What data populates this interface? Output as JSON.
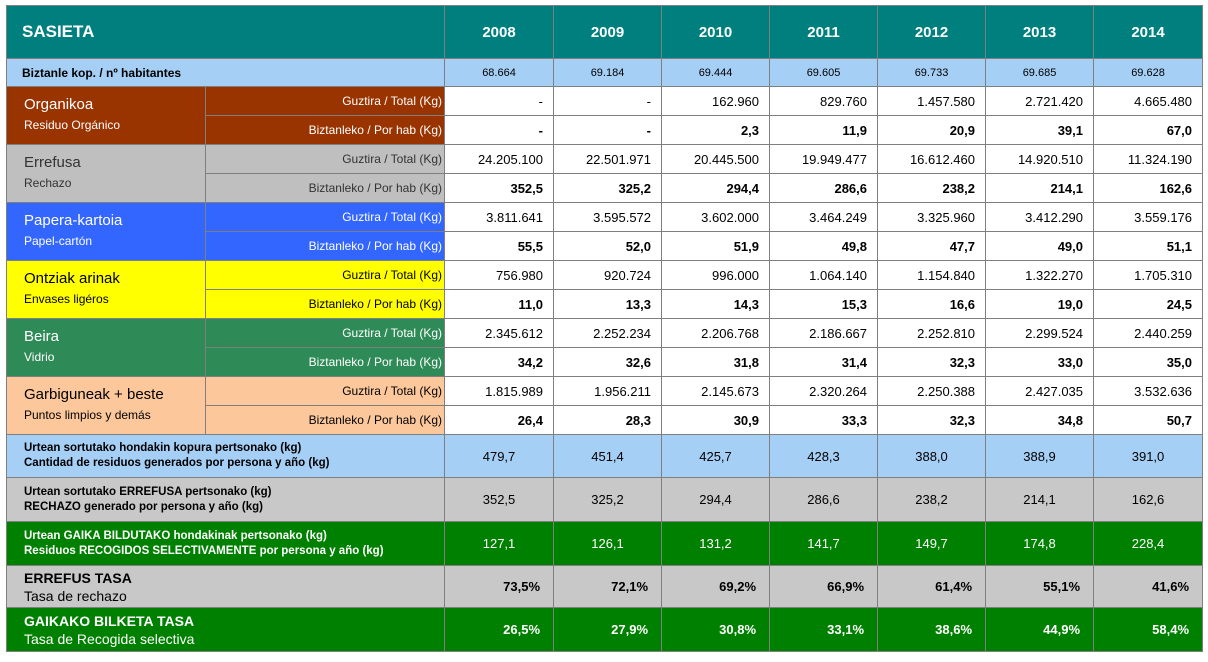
{
  "header": {
    "title": "SASIETA",
    "years": [
      "2008",
      "2009",
      "2010",
      "2011",
      "2012",
      "2013",
      "2014"
    ]
  },
  "population": {
    "label": "Biztanle kop. / nº habitantes",
    "values": [
      "68.664",
      "69.184",
      "69.444",
      "69.605",
      "69.733",
      "69.685",
      "69.628"
    ]
  },
  "labels": {
    "total": "Guztira / Total (Kg)",
    "per_hab": "Biztanleko / Por hab (Kg)"
  },
  "categories": [
    {
      "name_eu": "Organikoa",
      "name_es": "Residuo Orgánico",
      "color": "#993300",
      "total": [
        "-",
        "-",
        "162.960",
        "829.760",
        "1.457.580",
        "2.721.420",
        "4.665.480"
      ],
      "per_hab": [
        "-",
        "-",
        "2,3",
        "11,9",
        "20,9",
        "39,1",
        "67,0"
      ]
    },
    {
      "name_eu": "Errefusa",
      "name_es": "Rechazo",
      "color": "#bfbfbf",
      "total": [
        "24.205.100",
        "22.501.971",
        "20.445.500",
        "19.949.477",
        "16.612.460",
        "14.920.510",
        "11.324.190"
      ],
      "per_hab": [
        "352,5",
        "325,2",
        "294,4",
        "286,6",
        "238,2",
        "214,1",
        "162,6"
      ]
    },
    {
      "name_eu": "Papera-kartoia",
      "name_es": "Papel-cartón",
      "color": "#3366ff",
      "total": [
        "3.811.641",
        "3.595.572",
        "3.602.000",
        "3.464.249",
        "3.325.960",
        "3.412.290",
        "3.559.176"
      ],
      "per_hab": [
        "55,5",
        "52,0",
        "51,9",
        "49,8",
        "47,7",
        "49,0",
        "51,1"
      ]
    },
    {
      "name_eu": "Ontziak arinak",
      "name_es": "Envases ligéros",
      "color": "#ffff00",
      "total": [
        "756.980",
        "920.724",
        "996.000",
        "1.064.140",
        "1.154.840",
        "1.322.270",
        "1.705.310"
      ],
      "per_hab": [
        "11,0",
        "13,3",
        "14,3",
        "15,3",
        "16,6",
        "19,0",
        "24,5"
      ]
    },
    {
      "name_eu": "Beira",
      "name_es": "Vidrio",
      "color": "#2e8b57",
      "total": [
        "2.345.612",
        "2.252.234",
        "2.206.768",
        "2.186.667",
        "2.252.810",
        "2.299.524",
        "2.440.259"
      ],
      "per_hab": [
        "34,2",
        "32,6",
        "31,8",
        "31,4",
        "32,3",
        "33,0",
        "35,0"
      ]
    },
    {
      "name_eu": "Garbiguneak + beste",
      "name_es": "Puntos limpios y demás",
      "color": "#fcc89b",
      "total": [
        "1.815.989",
        "1.956.211",
        "2.145.673",
        "2.320.264",
        "2.250.388",
        "2.427.035",
        "3.532.636"
      ],
      "per_hab": [
        "26,4",
        "28,3",
        "30,9",
        "33,3",
        "32,3",
        "34,8",
        "50,7"
      ]
    }
  ],
  "summaries": [
    {
      "label_eu": "Urtean sortutako hondakin kopura pertsonako (kg)",
      "label_es": "Cantidad de residuos generados por persona y año (kg)",
      "color": "#a6cff6",
      "values": [
        "479,7",
        "451,4",
        "425,7",
        "428,3",
        "388,0",
        "388,9",
        "391,0"
      ]
    },
    {
      "label_eu": "Urtean sortutako ERREFUSA pertsonako (kg)",
      "label_es": "RECHAZO generado por persona y año (kg)",
      "color": "#c8c8c8",
      "values": [
        "352,5",
        "325,2",
        "294,4",
        "286,6",
        "238,2",
        "214,1",
        "162,6"
      ]
    },
    {
      "label_eu": "Urtean GAIKA BILDUTAKO hondakinak pertsonako (kg)",
      "label_es": "Residuos RECOGIDOS SELECTIVAMENTE por persona y año (kg)",
      "color": "#008000",
      "values": [
        "127,1",
        "126,1",
        "131,2",
        "141,7",
        "149,7",
        "174,8",
        "228,4"
      ]
    }
  ],
  "rates": [
    {
      "label_eu": "ERREFUS TASA",
      "label_es": "Tasa de rechazo",
      "color": "#c8c8c8",
      "values": [
        "73,5%",
        "72,1%",
        "69,2%",
        "66,9%",
        "61,4%",
        "55,1%",
        "41,6%"
      ]
    },
    {
      "label_eu": "GAIKAKO BILKETA TASA",
      "label_es": "Tasa de Recogida selectiva",
      "color": "#008000",
      "values": [
        "26,5%",
        "27,9%",
        "30,8%",
        "33,1%",
        "38,6%",
        "44,9%",
        "58,4%"
      ]
    }
  ]
}
